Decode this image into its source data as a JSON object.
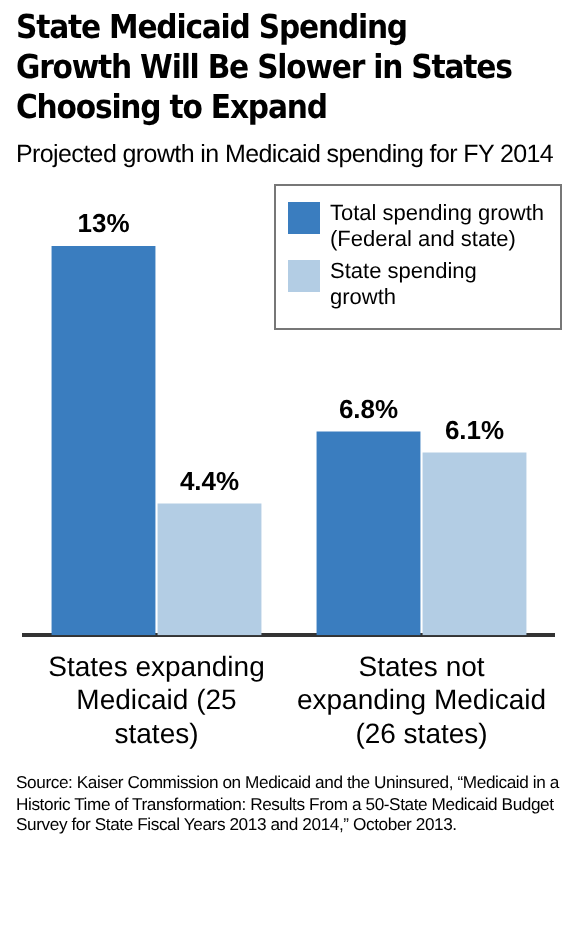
{
  "chart_data": {
    "type": "bar",
    "title": "State Medicaid Spending Growth Will Be Slower in States Choosing to Expand",
    "subtitle": "Projected growth in Medicaid spending for FY 2014",
    "categories": [
      "States expanding Medicaid (25 states)",
      "States not expanding Medicaid (26 states)"
    ],
    "series": [
      {
        "name": "Total spending growth (Federal and state)",
        "color": "#3a7dbf",
        "values": [
          13,
          6.8
        ],
        "value_labels": [
          "13%",
          "6.8%"
        ]
      },
      {
        "name": "State spending growth",
        "color": "#b3cde4",
        "values": [
          4.4,
          6.1
        ],
        "value_labels": [
          "4.4%",
          "6.1%"
        ]
      }
    ],
    "legend": "top right",
    "annotations": [
      "Source: Kaiser Commission on Medicaid and the Uninsured, “Medicaid in a Historic Time of Transformation: Results From a 50-State Medicaid Budget Survey for State Fiscal Years 2013 and 2014,” October 2013."
    ]
  }
}
